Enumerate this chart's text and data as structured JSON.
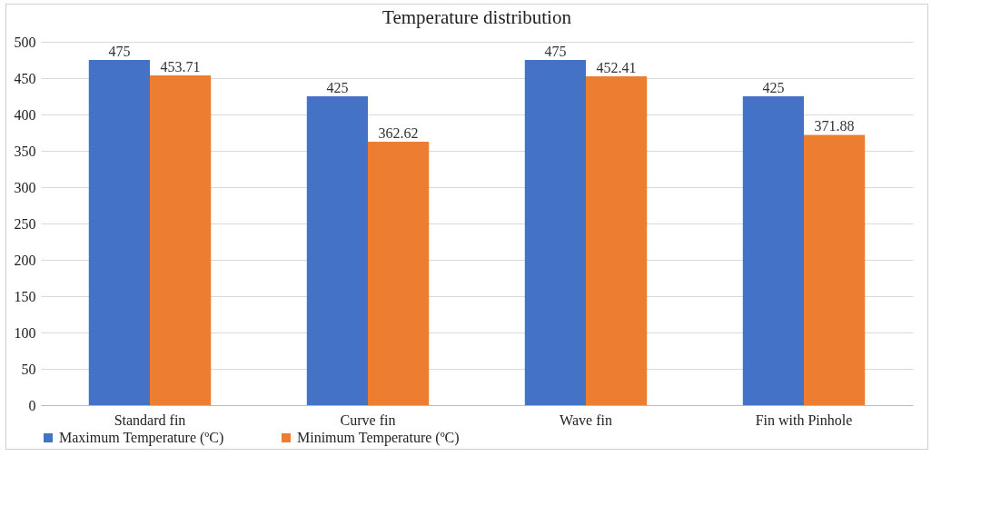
{
  "chart_data": {
    "type": "bar",
    "title": "Temperature distribution",
    "categories": [
      "Standard fin",
      "Curve fin",
      "Wave fin",
      "Fin with Pinhole"
    ],
    "series": [
      {
        "name": "Maximum Temperature (ºC)",
        "color": "#4472c4",
        "values": [
          475,
          425,
          475,
          425
        ]
      },
      {
        "name": "Minimum Temperature (ºC)",
        "color": "#ed7d31",
        "values": [
          453.71,
          362.62,
          452.41,
          371.88
        ]
      }
    ],
    "ylim": [
      0,
      500
    ],
    "yticks": [
      0,
      50,
      100,
      150,
      200,
      250,
      300,
      350,
      400,
      450,
      500
    ],
    "grid": "y",
    "legend": "bottom",
    "data_labels": true
  }
}
